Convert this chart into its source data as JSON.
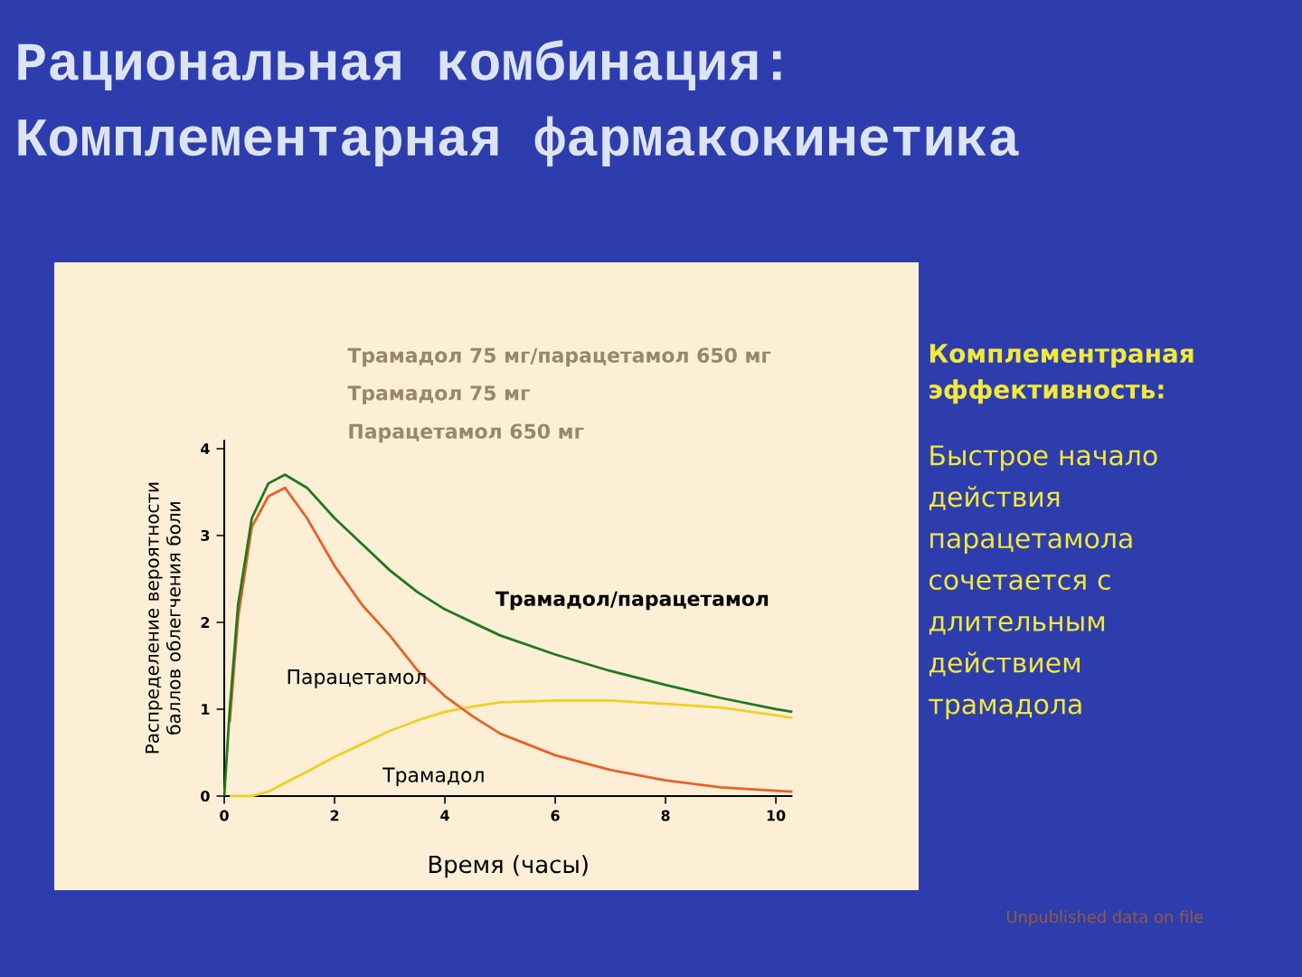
{
  "chart_data": {
    "type": "line",
    "title": "Рациональная комбинация:",
    "subtitle": "Комплементарная фармакокинетика",
    "xlabel": "Время (часы)",
    "ylabel": "Распределение вероятности баллов облегчения боли",
    "x": [
      0,
      0.1,
      0.25,
      0.5,
      0.8,
      1.1,
      1.5,
      2,
      2.5,
      3,
      3.5,
      4,
      4.5,
      5,
      6,
      7,
      8,
      9,
      10,
      10.3
    ],
    "xlim": [
      0,
      10.3
    ],
    "ylim": [
      0,
      4.1
    ],
    "xticks": [
      0,
      2,
      4,
      6,
      8,
      10
    ],
    "yticks": [
      0,
      1,
      2,
      3,
      4
    ],
    "series": [
      {
        "name": "Трамадол/парацетамол",
        "color": "#1e7a1e",
        "values": [
          0,
          1.0,
          2.2,
          3.2,
          3.6,
          3.7,
          3.55,
          3.2,
          2.9,
          2.6,
          2.35,
          2.15,
          2.0,
          1.85,
          1.63,
          1.44,
          1.28,
          1.13,
          1.0,
          0.97
        ]
      },
      {
        "name": "Парацетамол",
        "color": "#e8602a",
        "values": [
          null,
          0.85,
          2.05,
          3.1,
          3.45,
          3.55,
          3.2,
          2.65,
          2.2,
          1.85,
          1.45,
          1.15,
          0.92,
          0.72,
          0.47,
          0.3,
          0.18,
          0.1,
          0.06,
          0.05
        ]
      },
      {
        "name": "Трамадол",
        "color": "#f0d020",
        "values": [
          null,
          0,
          0,
          0.0,
          0.05,
          0.15,
          0.28,
          0.45,
          0.6,
          0.75,
          0.87,
          0.97,
          1.03,
          1.08,
          1.1,
          1.1,
          1.06,
          1.02,
          0.93,
          0.9
        ]
      }
    ],
    "annotations": [
      "Трамадол 75 мг/парацетамол 650 мг",
      "Трамадол 75 мг",
      "Парацетамол 650 мг",
      "Комплементраная эффективность:",
      "Быстрое начало действия парацетамола сочетается с длительным действием трамадола",
      "Unpublished data on file"
    ]
  }
}
